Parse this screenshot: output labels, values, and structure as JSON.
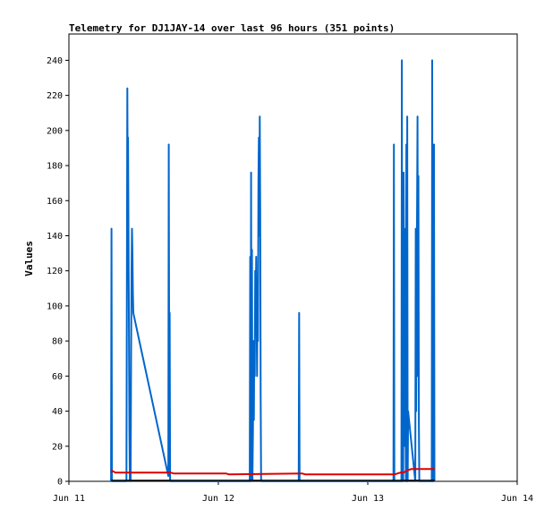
{
  "chart_data": {
    "type": "line",
    "title": "Telemetry for DJ1JAY-14 over last 96 hours (351 points)",
    "xlabel": "",
    "ylabel": "Values",
    "x_unit": "days since Jun 11",
    "xlim": [
      0,
      3
    ],
    "ylim": [
      0,
      255
    ],
    "x_ticks": [
      {
        "value": 0,
        "label": "Jun 11"
      },
      {
        "value": 1,
        "label": "Jun 12"
      },
      {
        "value": 2,
        "label": "Jun 13"
      },
      {
        "value": 3,
        "label": "Jun 14"
      }
    ],
    "y_ticks": [
      0,
      20,
      40,
      60,
      80,
      100,
      120,
      140,
      160,
      180,
      200,
      220,
      240
    ],
    "grid": false,
    "legend": "none",
    "series": [
      {
        "color": "#0066cc",
        "points": [
          [
            0.282,
            0
          ],
          [
            0.285,
            144
          ],
          [
            0.288,
            0
          ],
          [
            0.385,
            0
          ],
          [
            0.388,
            112
          ],
          [
            0.391,
            224
          ],
          [
            0.394,
            150
          ],
          [
            0.396,
            196
          ],
          [
            0.399,
            140
          ],
          [
            0.402,
            85
          ],
          [
            0.405,
            30
          ],
          [
            0.408,
            0
          ],
          [
            0.413,
            0
          ],
          [
            0.416,
            72
          ],
          [
            0.419,
            120
          ],
          [
            0.422,
            144
          ],
          [
            0.425,
            130
          ],
          [
            0.428,
            108
          ],
          [
            0.431,
            96
          ],
          [
            0.665,
            3
          ],
          [
            0.668,
            192
          ],
          [
            0.671,
            60
          ],
          [
            0.674,
            96
          ],
          [
            0.677,
            0
          ],
          [
            1.21,
            0
          ],
          [
            1.213,
            128
          ],
          [
            1.216,
            0
          ],
          [
            1.219,
            176
          ],
          [
            1.222,
            20
          ],
          [
            1.225,
            132
          ],
          [
            1.228,
            0
          ],
          [
            1.232,
            30
          ],
          [
            1.235,
            80
          ],
          [
            1.238,
            35
          ],
          [
            1.241,
            80
          ],
          [
            1.244,
            60
          ],
          [
            1.247,
            120
          ],
          [
            1.25,
            100
          ],
          [
            1.253,
            128
          ],
          [
            1.256,
            90
          ],
          [
            1.259,
            60
          ],
          [
            1.262,
            110
          ],
          [
            1.265,
            80
          ],
          [
            1.268,
            170
          ],
          [
            1.271,
            196
          ],
          [
            1.274,
            140
          ],
          [
            1.277,
            208
          ],
          [
            1.28,
            155
          ],
          [
            1.283,
            50
          ],
          [
            1.286,
            0
          ],
          [
            1.538,
            0
          ],
          [
            1.541,
            96
          ],
          [
            1.544,
            0
          ],
          [
            2.172,
            0
          ],
          [
            2.175,
            192
          ],
          [
            2.178,
            0
          ],
          [
            2.225,
            0
          ],
          [
            2.228,
            240
          ],
          [
            2.231,
            0
          ],
          [
            2.234,
            144
          ],
          [
            2.237,
            0
          ],
          [
            2.24,
            176
          ],
          [
            2.243,
            100
          ],
          [
            2.246,
            144
          ],
          [
            2.249,
            20
          ],
          [
            2.252,
            48
          ],
          [
            2.255,
            0
          ],
          [
            2.258,
            192
          ],
          [
            2.261,
            0
          ],
          [
            2.264,
            208
          ],
          [
            2.267,
            0
          ],
          [
            2.27,
            40
          ],
          [
            2.318,
            0
          ],
          [
            2.321,
            144
          ],
          [
            2.324,
            40
          ],
          [
            2.327,
            108
          ],
          [
            2.33,
            156
          ],
          [
            2.333,
            208
          ],
          [
            2.336,
            60
          ],
          [
            2.339,
            174
          ],
          [
            2.342,
            34
          ],
          [
            2.345,
            0
          ],
          [
            2.428,
            0
          ],
          [
            2.431,
            240
          ],
          [
            2.434,
            0
          ],
          [
            2.437,
            128
          ],
          [
            2.44,
            0
          ],
          [
            2.443,
            192
          ],
          [
            2.446,
            0
          ]
        ]
      },
      {
        "color": "#dd0000",
        "points": [
          [
            0.282,
            5
          ],
          [
            0.29,
            6
          ],
          [
            0.31,
            5
          ],
          [
            0.68,
            5
          ],
          [
            0.7,
            4.5
          ],
          [
            1.05,
            4.5
          ],
          [
            1.07,
            4
          ],
          [
            1.56,
            4.5
          ],
          [
            1.58,
            4
          ],
          [
            2.18,
            4
          ],
          [
            2.22,
            5
          ],
          [
            2.24,
            5
          ],
          [
            2.26,
            6
          ],
          [
            2.29,
            7
          ],
          [
            2.448,
            7
          ]
        ]
      },
      {
        "color": "#000000",
        "points": [
          [
            0.282,
            0.5
          ],
          [
            2.448,
            0.5
          ]
        ]
      }
    ]
  }
}
